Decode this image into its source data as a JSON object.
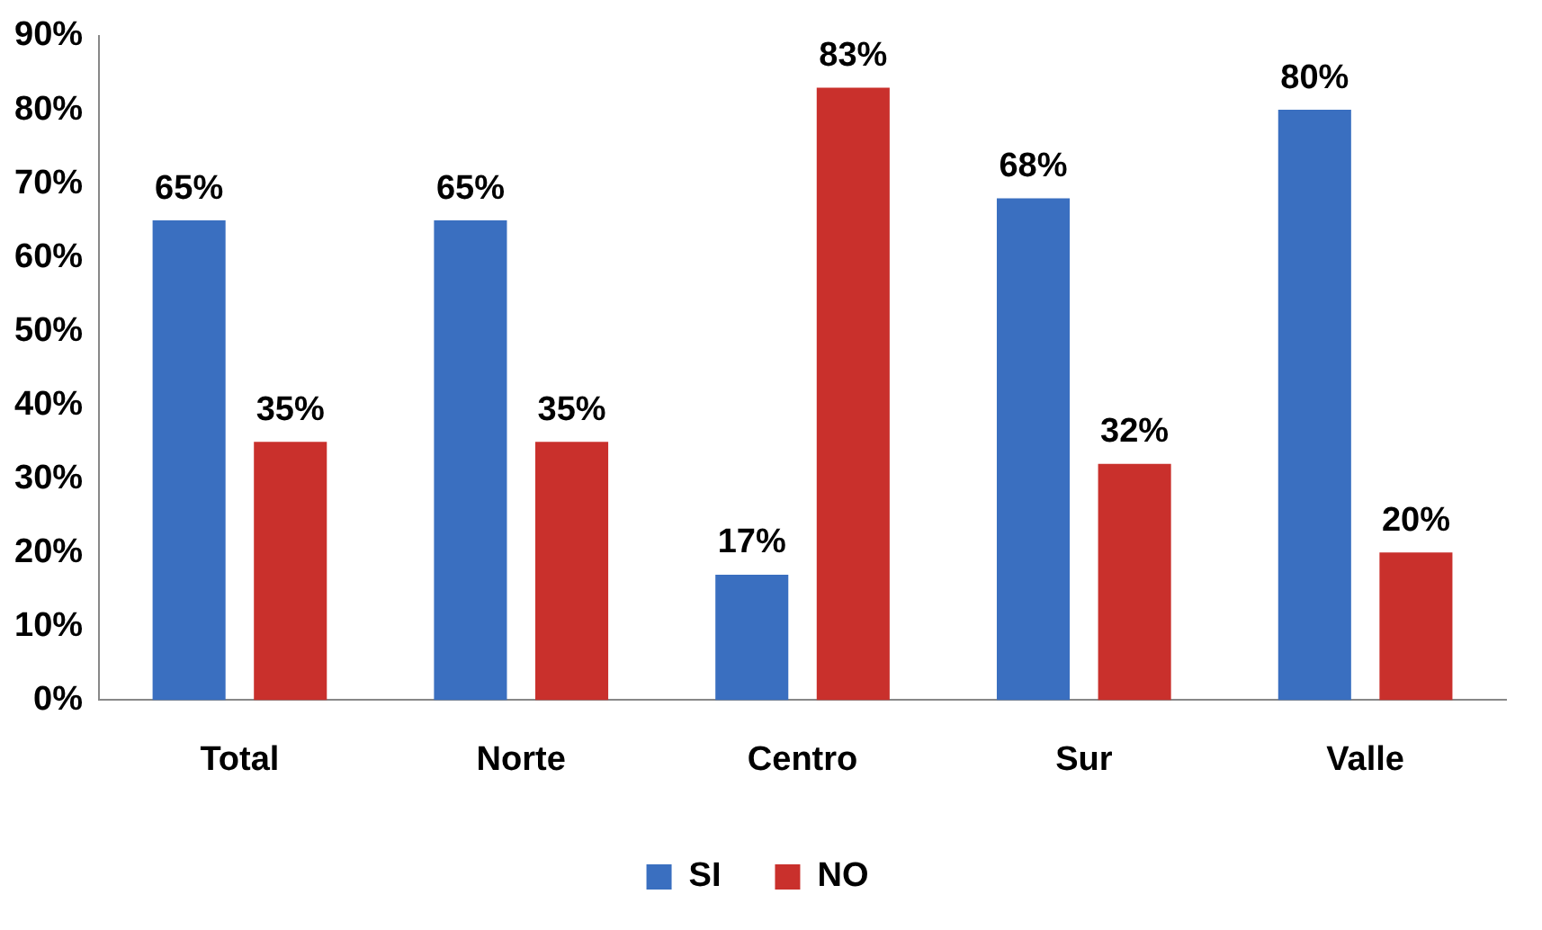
{
  "chart_data": {
    "type": "bar",
    "categories": [
      "Total",
      "Norte",
      "Centro",
      "Sur",
      "Valle"
    ],
    "series": [
      {
        "name": "SI",
        "color": "#3a6fc0",
        "values": [
          65,
          65,
          17,
          68,
          80
        ],
        "value_labels": [
          "65%",
          "65%",
          "17%",
          "68%",
          "80%"
        ]
      },
      {
        "name": "NO",
        "color": "#c9302c",
        "values": [
          35,
          35,
          83,
          32,
          20
        ],
        "value_labels": [
          "35%",
          "35%",
          "83%",
          "32%",
          "20%"
        ]
      }
    ],
    "ylim": [
      0,
      90
    ],
    "yticks": [
      {
        "value": 0,
        "label": "0%"
      },
      {
        "value": 10,
        "label": "10%"
      },
      {
        "value": 20,
        "label": "20%"
      },
      {
        "value": 30,
        "label": "30%"
      },
      {
        "value": 40,
        "label": "40%"
      },
      {
        "value": 50,
        "label": "50%"
      },
      {
        "value": 60,
        "label": "60%"
      },
      {
        "value": 70,
        "label": "70%"
      },
      {
        "value": 80,
        "label": "80%"
      },
      {
        "value": 90,
        "label": "90%"
      }
    ],
    "grid": false,
    "legend": "bottom"
  }
}
